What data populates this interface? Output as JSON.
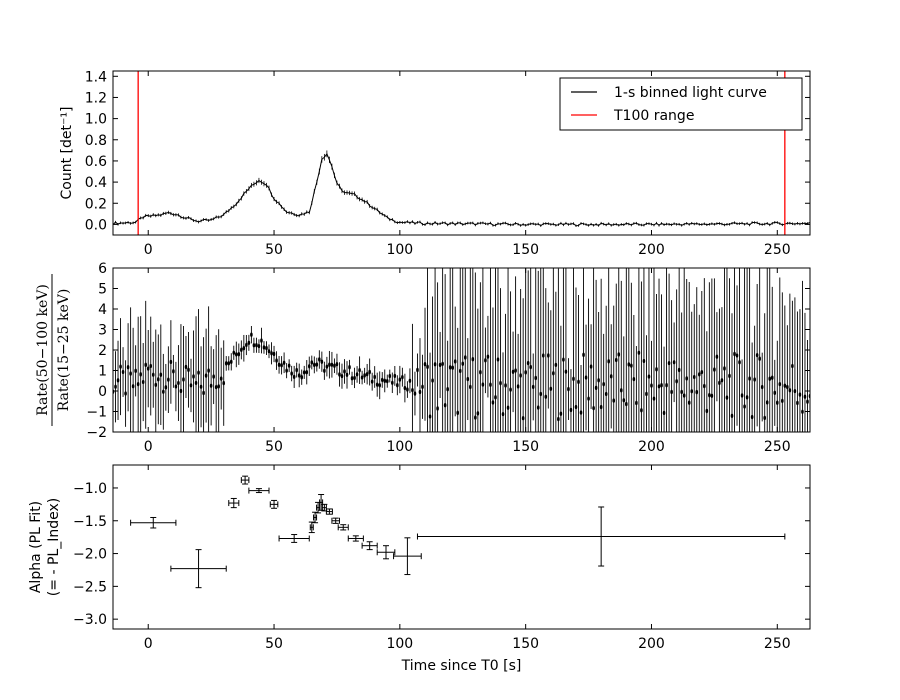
{
  "chart_data": [
    {
      "type": "line",
      "ylabel": "Count [det⁻¹]",
      "xlim": [
        -14,
        263
      ],
      "ylim": [
        -0.1,
        1.45
      ],
      "yticks": [
        0.0,
        0.2,
        0.4,
        0.6,
        0.8,
        1.0,
        1.2,
        1.4
      ],
      "ytick_labels": [
        "0.0",
        "0.2",
        "0.4",
        "0.6",
        "0.8",
        "1.0",
        "1.2",
        "1.4"
      ],
      "xticks": [
        0,
        50,
        100,
        150,
        200,
        250
      ],
      "xtick_labels": [
        "0",
        "50",
        "100",
        "150",
        "200",
        "250"
      ],
      "legend": {
        "placement": "top-right",
        "entries": [
          {
            "label": "1-s binned light curve",
            "color": "#000000"
          },
          {
            "label": "T100 range",
            "color": "#ff0000"
          }
        ]
      },
      "vlines": [
        -4,
        253
      ],
      "vline_color": "#ff0000",
      "curve_points": [
        [
          -14,
          0.01
        ],
        [
          -5,
          0.02
        ],
        [
          -2,
          0.07
        ],
        [
          5,
          0.09
        ],
        [
          8,
          0.11
        ],
        [
          12,
          0.09
        ],
        [
          15,
          0.06
        ],
        [
          20,
          0.03
        ],
        [
          25,
          0.04
        ],
        [
          30,
          0.09
        ],
        [
          35,
          0.2
        ],
        [
          40,
          0.34
        ],
        [
          44,
          0.42
        ],
        [
          47,
          0.38
        ],
        [
          50,
          0.25
        ],
        [
          55,
          0.12
        ],
        [
          60,
          0.09
        ],
        [
          64,
          0.12
        ],
        [
          67,
          0.4
        ],
        [
          69,
          0.62
        ],
        [
          71,
          0.67
        ],
        [
          73,
          0.55
        ],
        [
          75,
          0.38
        ],
        [
          78,
          0.3
        ],
        [
          82,
          0.28
        ],
        [
          86,
          0.22
        ],
        [
          90,
          0.15
        ],
        [
          95,
          0.06
        ],
        [
          100,
          0.02
        ],
        [
          110,
          0.01
        ],
        [
          150,
          0.0
        ],
        [
          200,
          0.0
        ],
        [
          263,
          0.01
        ]
      ]
    },
    {
      "type": "scatter",
      "ylabel": "Rate(50−100 keV) / Rate(15−25 keV)",
      "ylabel_num": "Rate(50−100 keV)",
      "ylabel_den": "Rate(15−25 keV)",
      "xlim": [
        -14,
        263
      ],
      "ylim": [
        -2,
        6
      ],
      "yticks": [
        -2,
        -1,
        0,
        1,
        2,
        3,
        4,
        5,
        6
      ],
      "ytick_labels": [
        "−2",
        "−1",
        "0",
        "1",
        "2",
        "3",
        "4",
        "5",
        "6"
      ],
      "xticks": [
        0,
        50,
        100,
        150,
        200,
        250
      ],
      "xtick_labels": [
        "0",
        "50",
        "100",
        "150",
        "200",
        "250"
      ],
      "curve_points": [
        [
          -14,
          0.5
        ],
        [
          -5,
          0.3
        ],
        [
          0,
          1.0
        ],
        [
          10,
          0.6
        ],
        [
          20,
          0.2
        ],
        [
          30,
          1.0
        ],
        [
          35,
          1.8
        ],
        [
          40,
          2.6
        ],
        [
          45,
          2.4
        ],
        [
          50,
          1.8
        ],
        [
          55,
          1.2
        ],
        [
          60,
          0.8
        ],
        [
          65,
          1.4
        ],
        [
          70,
          1.2
        ],
        [
          80,
          0.9
        ],
        [
          90,
          0.6
        ],
        [
          100,
          0.4
        ],
        [
          110,
          0.3
        ],
        [
          150,
          0.2
        ],
        [
          200,
          0.3
        ],
        [
          263,
          0.2
        ]
      ]
    },
    {
      "type": "scatter",
      "ylabel": "Alpha (PL Fit)",
      "ylabel_line2": "(= - PL_Index)",
      "xlabel": "Time since T0 [s]",
      "xlim": [
        -14,
        263
      ],
      "ylim": [
        -3.15,
        -0.65
      ],
      "yticks": [
        -3.0,
        -2.5,
        -2.0,
        -1.5,
        -1.0
      ],
      "ytick_labels": [
        "−3.0",
        "−2.5",
        "−2.0",
        "−1.5",
        "−1.0"
      ],
      "xticks": [
        0,
        50,
        100,
        150,
        200,
        250
      ],
      "xtick_labels": [
        "0",
        "50",
        "100",
        "150",
        "200",
        "250"
      ],
      "points": [
        {
          "x": 2,
          "xerr": 9,
          "y": -1.53,
          "yerr": 0.08
        },
        {
          "x": 20,
          "xerr": 11,
          "y": -2.23,
          "yerr": 0.29
        },
        {
          "x": 34,
          "xerr": 2,
          "y": -1.23,
          "yerr": 0.07
        },
        {
          "x": 38.5,
          "xerr": 1.5,
          "y": -0.88,
          "yerr": 0.06
        },
        {
          "x": 44,
          "xerr": 4,
          "y": -1.04,
          "yerr": 0.03
        },
        {
          "x": 50,
          "xerr": 1.5,
          "y": -1.25,
          "yerr": 0.06
        },
        {
          "x": 58,
          "xerr": 6,
          "y": -1.77,
          "yerr": 0.06
        },
        {
          "x": 65,
          "xerr": 0.6,
          "y": -1.6,
          "yerr": 0.08
        },
        {
          "x": 66.3,
          "xerr": 0.6,
          "y": -1.45,
          "yerr": 0.08
        },
        {
          "x": 67.5,
          "xerr": 0.6,
          "y": -1.3,
          "yerr": 0.08
        },
        {
          "x": 68.7,
          "xerr": 0.6,
          "y": -1.22,
          "yerr": 0.12
        },
        {
          "x": 70,
          "xerr": 0.8,
          "y": -1.3,
          "yerr": 0.05
        },
        {
          "x": 72,
          "xerr": 1.2,
          "y": -1.36,
          "yerr": 0.04
        },
        {
          "x": 74.5,
          "xerr": 1.5,
          "y": -1.5,
          "yerr": 0.04
        },
        {
          "x": 77.5,
          "xerr": 2,
          "y": -1.6,
          "yerr": 0.04
        },
        {
          "x": 82.5,
          "xerr": 3,
          "y": -1.77,
          "yerr": 0.04
        },
        {
          "x": 88,
          "xerr": 3,
          "y": -1.88,
          "yerr": 0.06
        },
        {
          "x": 94.5,
          "xerr": 3.5,
          "y": -1.98,
          "yerr": 0.1
        },
        {
          "x": 103,
          "xerr": 5.5,
          "y": -2.04,
          "yerr": 0.28
        },
        {
          "x": 180,
          "xerr": 73,
          "y": -1.74,
          "yerr": 0.45
        }
      ]
    }
  ]
}
